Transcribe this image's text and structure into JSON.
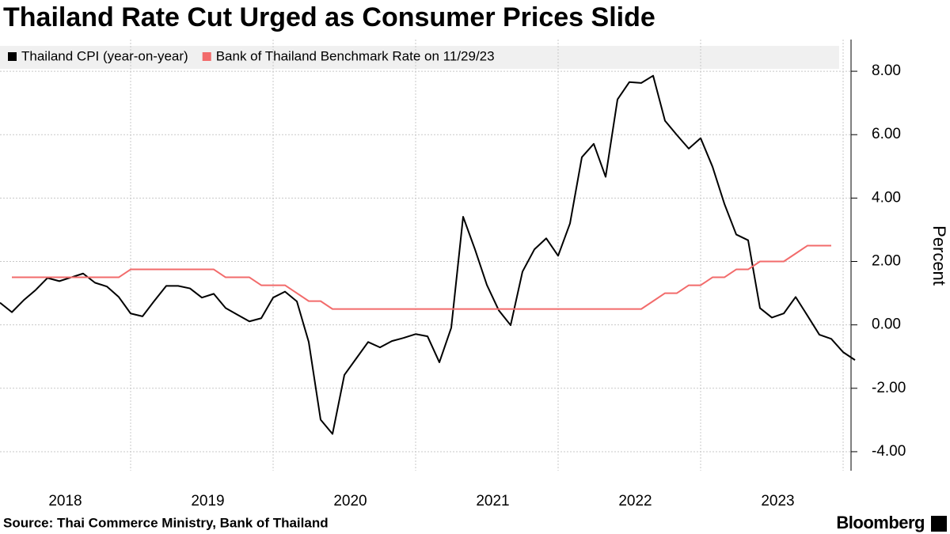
{
  "chart_data": {
    "type": "line",
    "title": "Thailand Rate Cut Urged as Consumer Prices Slide",
    "source": "Source: Thai Commerce Ministry, Bank of Thailand",
    "brand": "Bloomberg",
    "y_label": "Percent",
    "categories": [
      null,
      null,
      null,
      null,
      null,
      null,
      "2018",
      null,
      null,
      null,
      null,
      null,
      null,
      null,
      null,
      null,
      null,
      null,
      "2019",
      null,
      null,
      null,
      null,
      null,
      null,
      null,
      null,
      null,
      null,
      null,
      "2020",
      null,
      null,
      null,
      null,
      null,
      null,
      null,
      null,
      null,
      null,
      null,
      "2021",
      null,
      null,
      null,
      null,
      null,
      null,
      null,
      null,
      null,
      null,
      null,
      "2022",
      null,
      null,
      null,
      null,
      null,
      null,
      null,
      null,
      null,
      null,
      null,
      "2023",
      null,
      null,
      null,
      null,
      null,
      null
    ],
    "series": [
      {
        "name": "Thailand CPI (year-on-year)",
        "color": "#000000",
        "values": [
          0.7,
          0.4,
          0.78,
          1.1,
          1.48,
          1.38,
          1.5,
          1.62,
          1.33,
          1.21,
          0.88,
          0.36,
          0.27,
          0.76,
          1.23,
          1.23,
          1.15,
          0.86,
          0.98,
          0.53,
          0.32,
          0.11,
          0.21,
          0.86,
          1.05,
          0.74,
          -0.54,
          -2.99,
          -3.44,
          -1.58,
          -1.06,
          -0.54,
          -0.71,
          -0.51,
          -0.41,
          -0.29,
          -0.36,
          -1.18,
          -0.09,
          3.41,
          2.38,
          1.26,
          0.46,
          -0.01,
          1.68,
          2.38,
          2.73,
          2.18,
          3.2,
          5.29,
          5.71,
          4.67,
          7.11,
          7.66,
          7.63,
          7.86,
          6.44,
          5.99,
          5.56,
          5.89,
          4.99,
          3.82,
          2.85,
          2.67,
          0.53,
          0.23,
          0.36,
          0.88,
          0.29,
          -0.31,
          -0.44,
          -0.86,
          -1.11
        ]
      },
      {
        "name": "Bank of Thailand Benchmark Rate on 11/29/23",
        "color": "#f26b6b",
        "values": [
          null,
          1.5,
          1.5,
          1.5,
          1.5,
          1.5,
          1.5,
          1.5,
          1.5,
          1.5,
          1.5,
          1.75,
          1.75,
          1.75,
          1.75,
          1.75,
          1.75,
          1.75,
          1.75,
          1.5,
          1.5,
          1.5,
          1.25,
          1.25,
          1.25,
          1.0,
          0.75,
          0.75,
          0.5,
          0.5,
          0.5,
          0.5,
          0.5,
          0.5,
          0.5,
          0.5,
          0.5,
          0.5,
          0.5,
          0.5,
          0.5,
          0.5,
          0.5,
          0.5,
          0.5,
          0.5,
          0.5,
          0.5,
          0.5,
          0.5,
          0.5,
          0.5,
          0.5,
          0.5,
          0.5,
          0.75,
          1.0,
          1.0,
          1.25,
          1.25,
          1.5,
          1.5,
          1.75,
          1.75,
          2.0,
          2.0,
          2.0,
          2.25,
          2.5,
          2.5,
          2.5,
          null,
          null
        ]
      }
    ],
    "ylim": [
      -4.6,
      9.0
    ],
    "yticks": [
      {
        "value": -4,
        "label": "-4.00"
      },
      {
        "value": -2,
        "label": "-2.00"
      },
      {
        "value": 0,
        "label": "0.00"
      },
      {
        "value": 2,
        "label": "2.00"
      },
      {
        "value": 4,
        "label": "4.00"
      },
      {
        "value": 6,
        "label": "6.00"
      },
      {
        "value": 8,
        "label": "8.00"
      }
    ],
    "grid": true
  }
}
